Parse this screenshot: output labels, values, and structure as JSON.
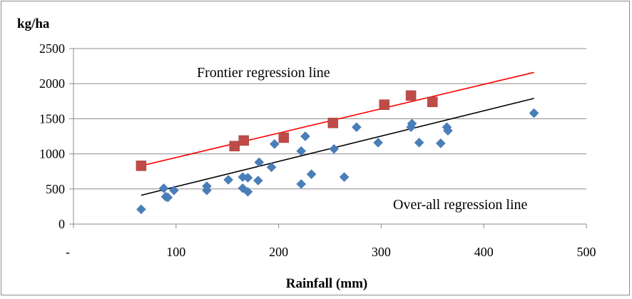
{
  "chart_data": {
    "type": "scatter",
    "ylabel": "kg/ha",
    "xlabel": "Rainfall (mm)",
    "xlim": [
      0,
      500
    ],
    "ylim": [
      0,
      2500
    ],
    "x_ticks": [
      0,
      100,
      200,
      300,
      400,
      500
    ],
    "x_tick_labels": [
      "-",
      "100",
      "200",
      "300",
      "400",
      "500"
    ],
    "y_ticks": [
      0,
      500,
      1000,
      1500,
      2000,
      2500
    ],
    "y_tick_labels": [
      "0",
      "500",
      "1000",
      "1500",
      "2000",
      "2500"
    ],
    "grid": "horizontal",
    "annotations": {
      "frontier": "Frontier regression line",
      "overall": "Over-all regression line"
    },
    "series": [
      {
        "marker": "diamond",
        "color": "#4a7ebb",
        "points": [
          [
            66,
            210
          ],
          [
            88,
            510
          ],
          [
            90,
            390
          ],
          [
            92,
            380
          ],
          [
            98,
            480
          ],
          [
            130,
            480
          ],
          [
            130,
            540
          ],
          [
            151,
            630
          ],
          [
            165,
            510
          ],
          [
            165,
            670
          ],
          [
            170,
            660
          ],
          [
            170,
            460
          ],
          [
            180,
            620
          ],
          [
            181,
            880
          ],
          [
            193,
            810
          ],
          [
            196,
            1140
          ],
          [
            222,
            570
          ],
          [
            222,
            1040
          ],
          [
            226,
            1250
          ],
          [
            232,
            710
          ],
          [
            254,
            1070
          ],
          [
            264,
            670
          ],
          [
            276,
            1380
          ],
          [
            297,
            1160
          ],
          [
            329,
            1380
          ],
          [
            330,
            1430
          ],
          [
            337,
            1160
          ],
          [
            358,
            1150
          ],
          [
            364,
            1380
          ],
          [
            365,
            1330
          ],
          [
            449,
            1580
          ]
        ]
      },
      {
        "marker": "square",
        "color": "#be4b48",
        "points": [
          [
            66,
            830
          ],
          [
            157,
            1110
          ],
          [
            166,
            1190
          ],
          [
            205,
            1230
          ],
          [
            253,
            1440
          ],
          [
            303,
            1700
          ],
          [
            329,
            1830
          ],
          [
            350,
            1740
          ]
        ]
      }
    ],
    "lines": [
      {
        "color": "#ff0000",
        "from": [
          66,
          830
        ],
        "to": [
          449,
          2160
        ]
      },
      {
        "color": "#000000",
        "from": [
          66,
          410
        ],
        "to": [
          449,
          1790
        ]
      }
    ]
  }
}
